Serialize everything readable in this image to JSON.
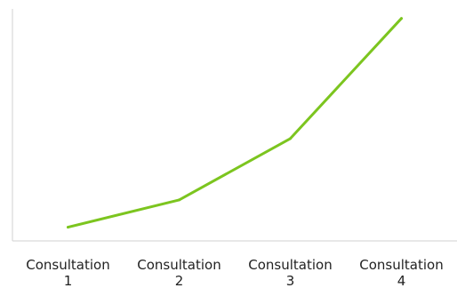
{
  "chart_data": {
    "type": "line",
    "categories": [
      "Consultation 1",
      "Consultation 2",
      "Consultation 3",
      "Consultation 4"
    ],
    "category_lines": [
      [
        "Consultation",
        "1"
      ],
      [
        "Consultation",
        "2"
      ],
      [
        "Consultation",
        "3"
      ],
      [
        "Consultation",
        "4"
      ]
    ],
    "series": [
      {
        "values": [
          1,
          3,
          7.5,
          16.3
        ]
      }
    ],
    "ylim": [
      0,
      17
    ],
    "grid": false,
    "legend": "none",
    "colors": {
      "line": "#7cc51f",
      "axis": "#d0d0d0",
      "text": "#222222"
    }
  }
}
